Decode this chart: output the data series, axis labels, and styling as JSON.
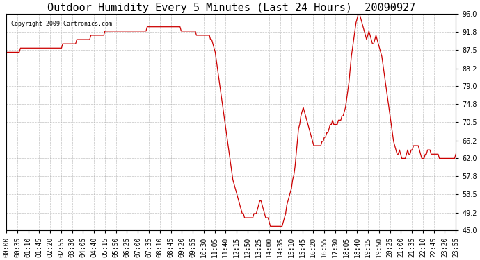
{
  "title": "Outdoor Humidity Every 5 Minutes (Last 24 Hours)  20090927",
  "copyright_text": "Copyright 2009 Cartronics.com",
  "line_color": "#cc0000",
  "background_color": "#ffffff",
  "grid_color": "#aaaaaa",
  "ylim": [
    45.0,
    96.0
  ],
  "yticks": [
    45.0,
    49.2,
    53.5,
    57.8,
    62.0,
    66.2,
    70.5,
    74.8,
    79.0,
    83.2,
    87.5,
    91.8,
    96.0
  ],
  "title_fontsize": 11,
  "tick_fontsize": 7,
  "x_tick_labels": [
    "00:00",
    "00:35",
    "01:10",
    "01:45",
    "02:20",
    "02:55",
    "03:30",
    "04:05",
    "04:40",
    "05:15",
    "05:50",
    "06:25",
    "07:00",
    "07:35",
    "08:10",
    "08:45",
    "09:20",
    "09:55",
    "10:30",
    "11:05",
    "11:40",
    "12:15",
    "12:50",
    "13:25",
    "14:00",
    "14:35",
    "15:10",
    "15:45",
    "16:20",
    "16:55",
    "17:30",
    "18:05",
    "18:40",
    "19:15",
    "19:50",
    "20:25",
    "21:00",
    "21:35",
    "22:10",
    "22:45",
    "23:20",
    "23:55"
  ],
  "humidity_data": [
    87,
    87,
    87,
    87,
    87,
    87,
    87,
    87,
    87,
    87,
    87,
    87,
    88,
    88,
    88,
    88,
    88,
    88,
    88,
    88,
    88,
    88,
    88,
    88,
    88,
    88,
    88,
    88,
    88,
    88,
    88,
    88,
    88,
    88,
    88,
    88,
    88,
    88,
    88,
    88,
    88,
    88,
    88,
    88,
    88,
    88,
    88,
    88,
    89,
    89,
    89,
    89,
    89,
    89,
    89,
    89,
    89,
    89,
    89,
    89,
    90,
    90,
    90,
    90,
    90,
    90,
    90,
    90,
    90,
    90,
    90,
    90,
    91,
    91,
    91,
    91,
    91,
    91,
    91,
    91,
    91,
    91,
    91,
    91,
    92,
    92,
    92,
    92,
    92,
    92,
    92,
    92,
    92,
    92,
    92,
    92,
    92,
    92,
    92,
    92,
    92,
    92,
    92,
    92,
    92,
    92,
    92,
    92,
    92,
    92,
    92,
    92,
    92,
    92,
    92,
    92,
    92,
    92,
    92,
    92,
    93,
    93,
    93,
    93,
    93,
    93,
    93,
    93,
    93,
    93,
    93,
    93,
    93,
    93,
    93,
    93,
    93,
    93,
    93,
    93,
    93,
    93,
    93,
    93,
    93,
    93,
    93,
    93,
    93,
    92,
    92,
    92,
    92,
    92,
    92,
    92,
    92,
    92,
    92,
    92,
    92,
    92,
    91,
    91,
    91,
    91,
    91,
    91,
    91,
    91,
    91,
    91,
    91,
    91,
    90,
    90,
    89,
    88,
    87,
    85,
    83,
    81,
    79,
    77,
    75,
    73,
    71,
    69,
    67,
    65,
    63,
    61,
    59,
    57,
    56,
    55,
    54,
    53,
    52,
    51,
    50,
    49,
    49,
    48,
    48,
    48,
    48,
    48,
    48,
    48,
    48,
    49,
    49,
    49,
    50,
    51,
    52,
    52,
    51,
    50,
    49,
    48,
    48,
    48,
    47,
    46,
    46,
    46,
    46,
    46,
    46,
    46,
    46,
    46,
    46,
    46,
    47,
    48,
    49,
    51,
    52,
    53,
    54,
    55,
    57,
    58,
    60,
    63,
    66,
    69,
    70,
    72,
    73,
    74,
    73,
    72,
    71,
    70,
    69,
    68,
    67,
    66,
    65,
    65,
    65,
    65,
    65,
    65,
    65,
    66,
    66,
    67,
    67,
    68,
    68,
    69,
    70,
    70,
    71,
    70,
    70,
    70,
    70,
    71,
    71,
    71,
    72,
    72,
    73,
    74,
    76,
    78,
    80,
    83,
    86,
    88,
    90,
    92,
    94,
    95,
    96,
    96,
    95,
    94,
    93,
    92,
    91,
    90,
    91,
    92,
    91,
    90,
    89,
    89,
    90,
    91,
    90,
    89,
    88,
    87,
    86,
    84,
    82,
    80,
    78,
    76,
    74,
    72,
    70,
    68,
    66,
    65,
    64,
    63,
    63,
    64,
    63,
    62,
    62,
    62,
    62,
    63,
    64,
    63,
    63,
    64,
    64,
    65,
    65,
    65,
    65,
    65,
    64,
    63,
    62,
    62,
    62,
    63,
    63,
    64,
    64,
    64,
    63,
    63,
    63,
    63,
    63,
    63,
    63,
    62,
    62,
    62,
    62,
    62,
    62,
    62,
    62,
    62,
    62,
    62,
    62,
    62,
    62,
    63
  ]
}
